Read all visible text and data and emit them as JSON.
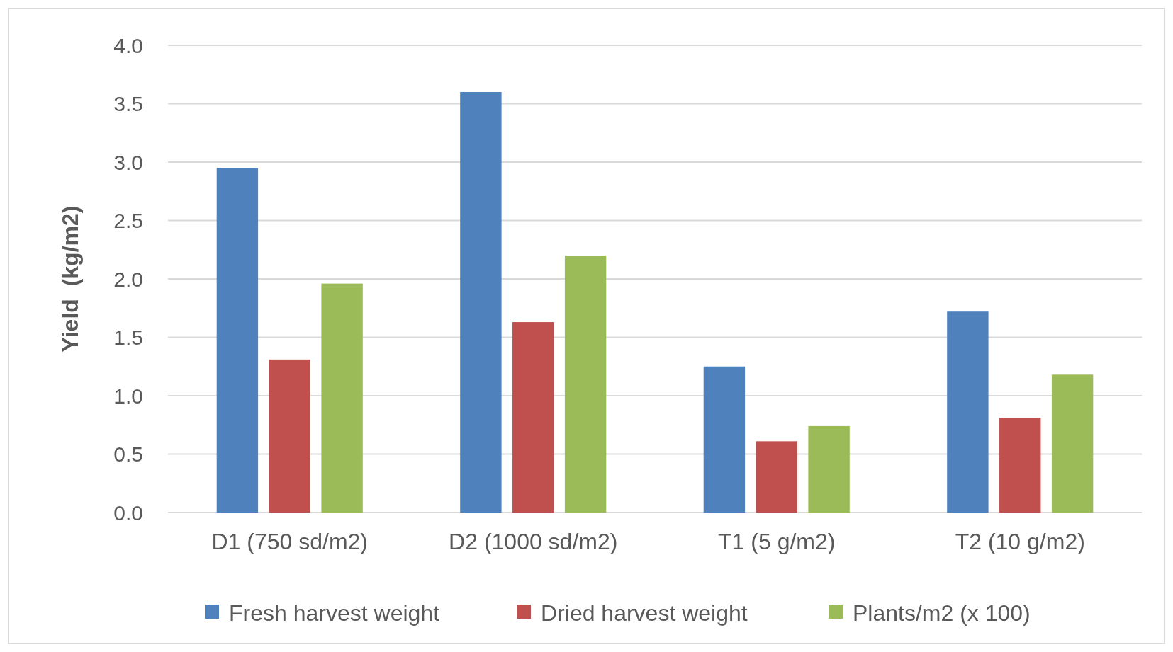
{
  "chart_data": {
    "type": "bar",
    "ylabel": "Yield  (kg/m2)",
    "categories": [
      "D1 (750 sd/m2)",
      "D2 (1000 sd/m2)",
      "T1 (5 g/m2)",
      "T2 (10 g/m2)"
    ],
    "series": [
      {
        "name": "Fresh harvest weight",
        "color": "#4f81bd",
        "values": [
          2.95,
          3.6,
          1.25,
          1.72
        ]
      },
      {
        "name": "Dried harvest weight",
        "color": "#c0504d",
        "values": [
          1.31,
          1.63,
          0.61,
          0.81
        ]
      },
      {
        "name": "Plants/m2 (x 100)",
        "color": "#9bbb59",
        "values": [
          1.96,
          2.2,
          0.74,
          1.18
        ]
      }
    ],
    "ylim": [
      0,
      4
    ],
    "yticks": [
      {
        "value": 0,
        "label": "0.0"
      },
      {
        "value": 0.5,
        "label": "0.5"
      },
      {
        "value": 1,
        "label": "1.0"
      },
      {
        "value": 1.5,
        "label": "1.5"
      },
      {
        "value": 2,
        "label": "2.0"
      },
      {
        "value": 2.5,
        "label": "2.5"
      },
      {
        "value": 3,
        "label": "3.0"
      },
      {
        "value": 3.5,
        "label": "3.5"
      },
      {
        "value": 4,
        "label": "4.0"
      }
    ],
    "grid": "y",
    "legend": "bottom"
  }
}
